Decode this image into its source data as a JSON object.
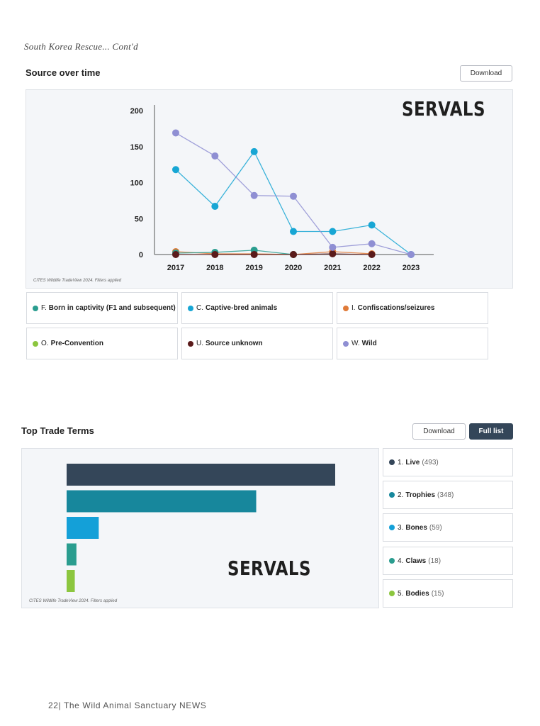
{
  "header": {
    "subtitle": "South Korea Rescue... Cont'd"
  },
  "source_section": {
    "title": "Source over time",
    "download_label": "Download",
    "watermark": "SERVALS",
    "source_note": "CITES Wildlife TradeView 2024. Filters applied",
    "legend": [
      {
        "code": "F.",
        "label": "Born in captivity (F1 and subsequent)",
        "color": "#2a9d8f"
      },
      {
        "code": "C.",
        "label": "Captive-bred animals",
        "color": "#17a6d4"
      },
      {
        "code": "I.",
        "label": "Confiscations/seizures",
        "color": "#e07b39"
      },
      {
        "code": "O.",
        "label": "Pre-Convention",
        "color": "#8cc63f"
      },
      {
        "code": "U.",
        "label": "Source unknown",
        "color": "#5a1a1a"
      },
      {
        "code": "W.",
        "label": "Wild",
        "color": "#8f8fd3"
      }
    ]
  },
  "trade_section": {
    "title": "Top Trade Terms",
    "download_label": "Download",
    "full_list_label": "Full list",
    "watermark": "SERVALS",
    "source_note": "CITES Wildlife TradeView 2024. Filters applied",
    "items": [
      {
        "rank": "1.",
        "label": "Live",
        "count": "(493)",
        "color": "#344659"
      },
      {
        "rank": "2.",
        "label": "Trophies",
        "count": "(348)",
        "color": "#17879c"
      },
      {
        "rank": "3.",
        "label": "Bones",
        "count": "(59)",
        "color": "#14a0d8"
      },
      {
        "rank": "4.",
        "label": "Claws",
        "count": "(18)",
        "color": "#2a9d8f"
      },
      {
        "rank": "5.",
        "label": "Bodies",
        "count": "(15)",
        "color": "#8cc63f"
      }
    ]
  },
  "chart_data": [
    {
      "type": "line",
      "x": [
        "2017",
        "2018",
        "2019",
        "2020",
        "2021",
        "2022",
        "2023"
      ],
      "ylim": [
        0,
        200
      ],
      "yticks": [
        0,
        50,
        100,
        150,
        200
      ],
      "legend_position": "bottom",
      "grid": false,
      "series": [
        {
          "name": "F. Born in captivity (F1 and subsequent)",
          "color": "#2a9d8f",
          "values": [
            2,
            3,
            6,
            0,
            null,
            null,
            null
          ]
        },
        {
          "name": "C. Captive-bred animals",
          "color": "#17a6d4",
          "values": [
            118,
            67,
            143,
            32,
            32,
            41,
            0
          ]
        },
        {
          "name": "I. Confiscations/seizures",
          "color": "#e07b39",
          "values": [
            4,
            1,
            1,
            0,
            4,
            1,
            null
          ]
        },
        {
          "name": "O. Pre-Convention",
          "color": "#8cc63f",
          "values": [
            null,
            null,
            null,
            null,
            null,
            null,
            null
          ]
        },
        {
          "name": "U. Source unknown",
          "color": "#5a1a1a",
          "values": [
            0,
            0,
            0,
            0,
            1,
            0,
            null
          ]
        },
        {
          "name": "W. Wild",
          "color": "#8f8fd3",
          "values": [
            169,
            137,
            82,
            81,
            10,
            15,
            0
          ]
        }
      ]
    },
    {
      "type": "bar",
      "orientation": "horizontal",
      "categories": [
        "Live",
        "Trophies",
        "Bones",
        "Claws",
        "Bodies"
      ],
      "values": [
        493,
        348,
        59,
        18,
        15
      ],
      "colors": [
        "#344659",
        "#17879c",
        "#14a0d8",
        "#2a9d8f",
        "#8cc63f"
      ]
    }
  ],
  "footer": {
    "text": "22| The Wild Animal Sanctuary NEWS"
  }
}
